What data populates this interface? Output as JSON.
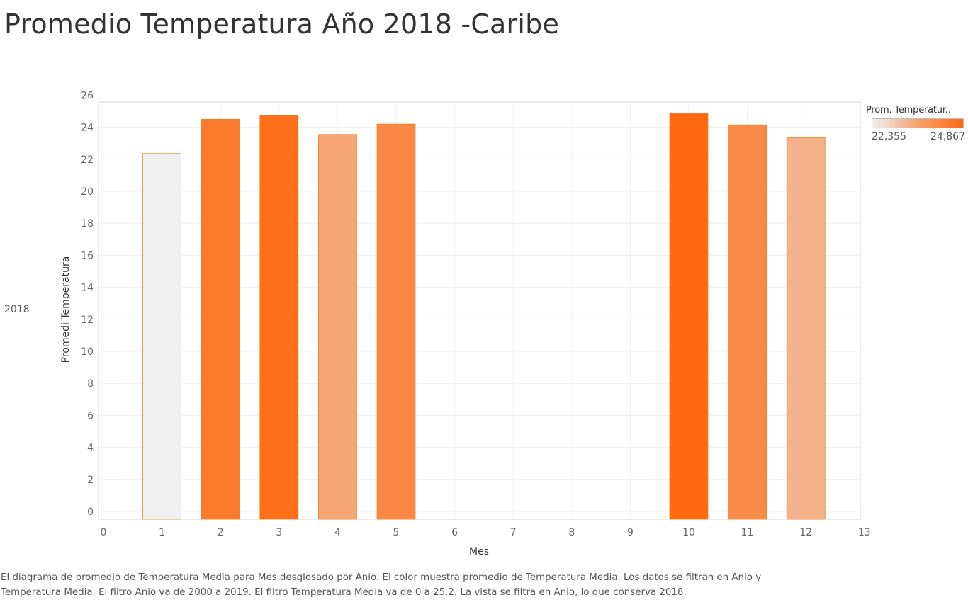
{
  "title": "Promedio Temperatura Año 2018 -Caribe",
  "row_header": "2018",
  "legend": {
    "title": "Prom. Temperatur..",
    "min_label": "22,355",
    "max_label": "24,867",
    "color_low": "#f0f0f0",
    "color_mid": "#f5a170",
    "color_high": "#ff6a10"
  },
  "caption": "El diagrama de promedio de Temperatura Media para Mes desglosado por Anio.  El color muestra promedio de Temperatura Media. Los datos se filtran en Anio y Temperatura Media. El filtro Anio va de 2000 a 2019. El filtro Temperatura Media va de 0 a 25.2. La vista se filtra en Anio, lo que conserva 2018.",
  "chart_data": {
    "type": "bar",
    "xlabel": "Mes",
    "ylabel": "Promedi Temperatura",
    "x": [
      1,
      2,
      3,
      4,
      5,
      10,
      11,
      12
    ],
    "values": [
      22.355,
      24.5,
      24.75,
      23.55,
      24.2,
      24.867,
      24.15,
      23.35
    ],
    "xlim": [
      0,
      13
    ],
    "ylim": [
      0,
      26
    ],
    "x_ticks": [
      0,
      1,
      2,
      3,
      4,
      5,
      6,
      7,
      8,
      9,
      10,
      11,
      12,
      13
    ],
    "y_ticks": [
      0,
      2,
      4,
      6,
      8,
      10,
      12,
      14,
      16,
      18,
      20,
      22,
      24,
      26
    ],
    "grid": true,
    "color_scale_min": 22.355,
    "color_scale_max": 24.867,
    "bar_border_color": "#e8861a"
  }
}
